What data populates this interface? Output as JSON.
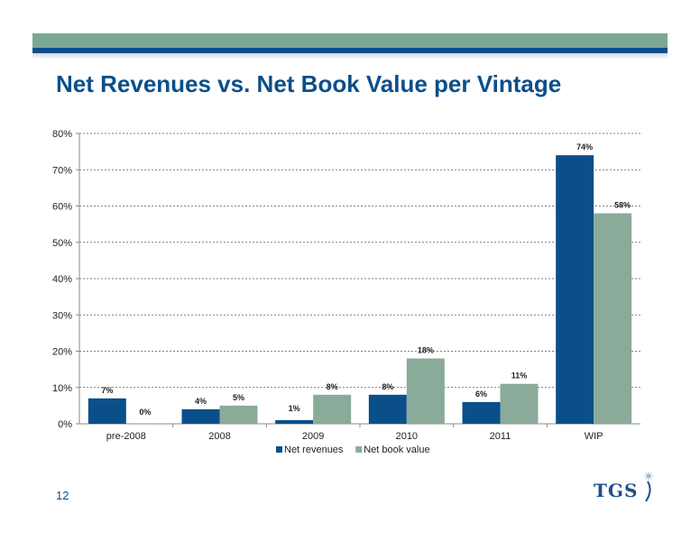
{
  "slide": {
    "title": "Net Revenues vs. Net Book Value per Vintage",
    "page_number": "12",
    "logo_text": "TGS"
  },
  "colors": {
    "header_green": "#7aa894",
    "header_blue": "#0b4f8a",
    "net_revenues": "#0b4f8a",
    "net_book_value": "#8aab99"
  },
  "chart_data": {
    "type": "bar",
    "title": "",
    "xlabel": "",
    "ylabel": "",
    "categories": [
      "pre-2008",
      "2008",
      "2009",
      "2010",
      "2011",
      "WIP"
    ],
    "ylim": [
      0,
      80
    ],
    "yticks": [
      "0%",
      "10%",
      "20%",
      "30%",
      "40%",
      "50%",
      "60%",
      "70%",
      "80%"
    ],
    "grid": true,
    "legend_position": "bottom",
    "series": [
      {
        "name": "Net revenues",
        "color": "#0b4f8a",
        "values": [
          7,
          4,
          1,
          8,
          6,
          74
        ],
        "labels": [
          "7%",
          "4%",
          "1%",
          "8%",
          "6%",
          "74%"
        ]
      },
      {
        "name": "Net book value",
        "color": "#8aab99",
        "values": [
          0,
          5,
          8,
          18,
          11,
          58
        ],
        "labels": [
          "0%",
          "5%",
          "8%",
          "18%",
          "11%",
          "58%"
        ]
      }
    ]
  }
}
